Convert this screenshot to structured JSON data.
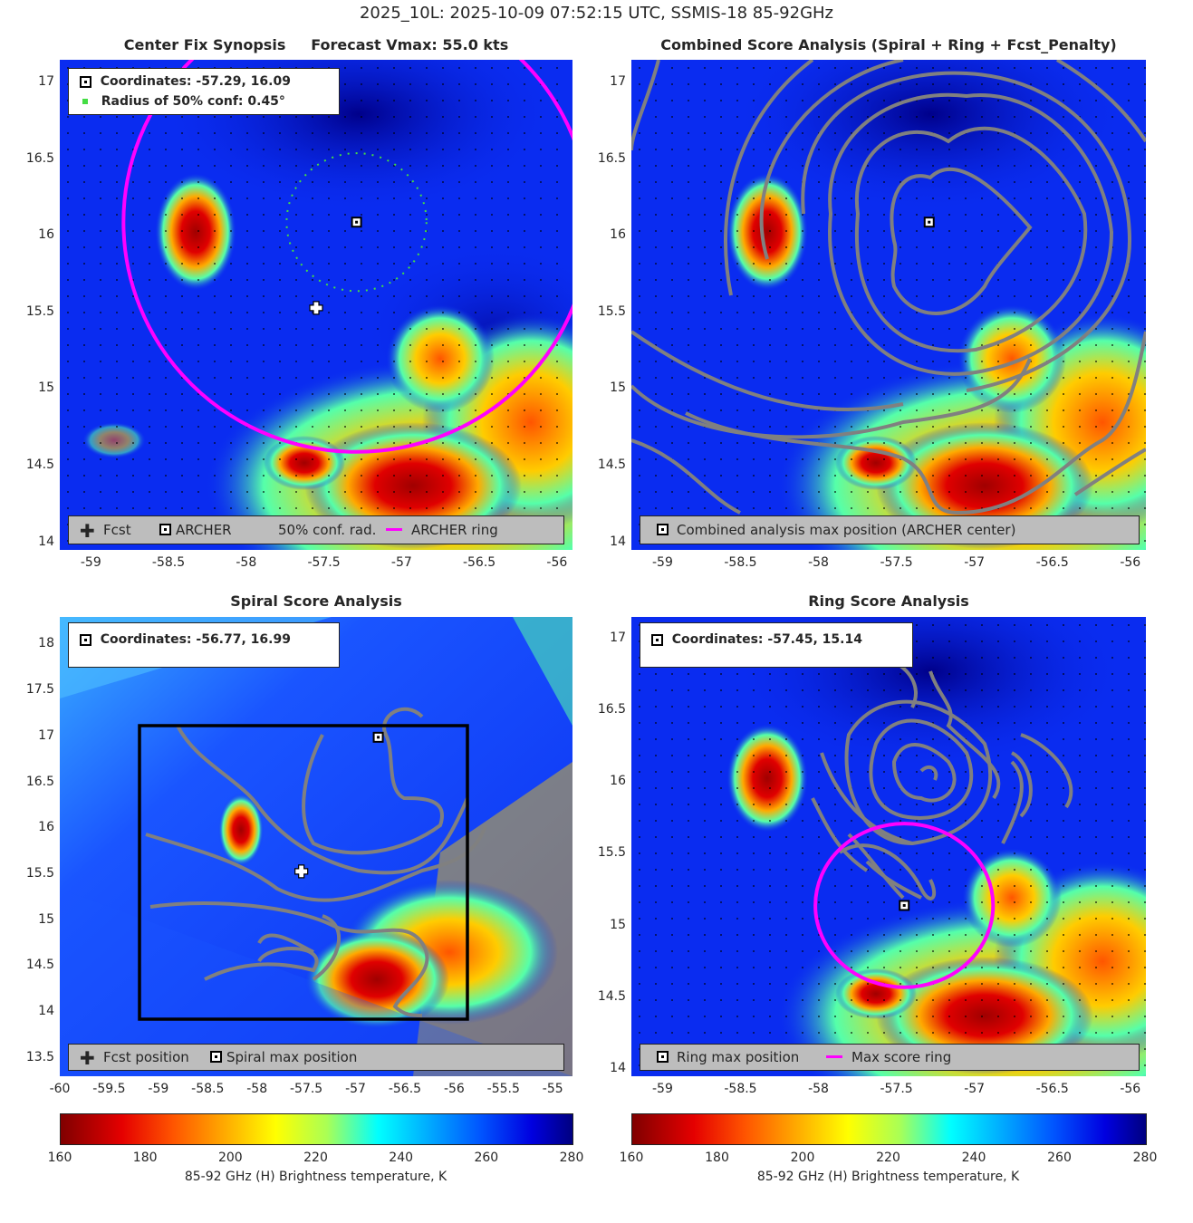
{
  "suptitle": "2025_10L: 2025-10-09 07:52:15 UTC, SSMIS-18 85-92GHz",
  "panels": {
    "p1": {
      "title": "Center Fix Synopsis     Forecast Vmax: 55.0 kts",
      "info": [
        "Coordinates: -57.29, 16.09",
        "Radius of 50% conf: 0.45°"
      ],
      "legend": [
        "Fcst",
        "ARCHER",
        "50% conf. rad.",
        "ARCHER ring"
      ],
      "xticks": [
        "-59",
        "-58.5",
        "-58",
        "-57.5",
        "-57",
        "-56.5",
        "-56"
      ],
      "yticks": [
        "17",
        "16.5",
        "16",
        "15.5",
        "15",
        "14.5",
        "14"
      ]
    },
    "p2": {
      "title": "Combined Score Analysis (Spiral + Ring + Fcst_Penalty)",
      "legend": [
        "Combined analysis max position (ARCHER center)"
      ],
      "xticks": [
        "-59",
        "-58.5",
        "-58",
        "-57.5",
        "-57",
        "-56.5",
        "-56"
      ],
      "yticks": [
        "17",
        "16.5",
        "16",
        "15.5",
        "15",
        "14.5",
        "14"
      ]
    },
    "p3": {
      "title": "Spiral Score Analysis",
      "info": [
        "Coordinates: -56.77, 16.99"
      ],
      "legend": [
        "Fcst position",
        "Spiral max position"
      ],
      "xticks": [
        "-60",
        "-59.5",
        "-59",
        "-58.5",
        "-58",
        "-57.5",
        "-57",
        "-56.5",
        "-56",
        "-55.5",
        "-55"
      ],
      "yticks": [
        "18",
        "17.5",
        "17",
        "16.5",
        "16",
        "15.5",
        "15",
        "14.5",
        "14",
        "13.5"
      ]
    },
    "p4": {
      "title": "Ring Score Analysis",
      "info": [
        "Coordinates: -57.45, 15.14"
      ],
      "legend": [
        "Ring max position",
        "Max score ring"
      ],
      "xticks": [
        "-59",
        "-58.5",
        "-58",
        "-57.5",
        "-57",
        "-56.5",
        "-56"
      ],
      "yticks": [
        "17",
        "16.5",
        "16",
        "15.5",
        "15",
        "14.5",
        "14"
      ]
    }
  },
  "colorbars": [
    {
      "ticks": [
        "160",
        "180",
        "200",
        "220",
        "240",
        "260",
        "280"
      ],
      "label": "85-92 GHz (H) Brightness temperature, K"
    },
    {
      "ticks": [
        "160",
        "180",
        "200",
        "220",
        "240",
        "260",
        "280"
      ],
      "label": "85-92 GHz (H) Brightness temperature, K"
    }
  ],
  "colors": {
    "archer_ring": "#ff00ff",
    "contour": "#808080",
    "conf_radius": "#44dd44"
  },
  "chart_data": [
    {
      "type": "heatmap",
      "title": "Center Fix Synopsis",
      "subtitle": "Forecast Vmax: 55.0 kts",
      "xlim": [
        -59.2,
        -55.9
      ],
      "ylim": [
        13.95,
        17.15
      ],
      "colorbar_range": [
        160,
        280
      ],
      "archer_center": [
        -57.29,
        16.09
      ],
      "fcst_position": [
        -57.55,
        15.53
      ],
      "conf_radius_deg": 0.45,
      "archer_ring": {
        "center": [
          -57.29,
          16.09
        ],
        "radius_deg": 1.5
      }
    },
    {
      "type": "heatmap",
      "title": "Combined Score Analysis (Spiral + Ring + Fcst_Penalty)",
      "xlim": [
        -59.2,
        -55.9
      ],
      "ylim": [
        13.95,
        17.15
      ],
      "max_position": [
        -57.29,
        16.09
      ]
    },
    {
      "type": "heatmap",
      "title": "Spiral Score Analysis",
      "xlim": [
        -60,
        -54.8
      ],
      "ylim": [
        13.3,
        18.3
      ],
      "spiral_max": [
        -56.77,
        16.99
      ],
      "fcst_position": [
        -57.55,
        15.53
      ]
    },
    {
      "type": "heatmap",
      "title": "Ring Score Analysis",
      "xlim": [
        -59.2,
        -55.9
      ],
      "ylim": [
        13.95,
        17.15
      ],
      "ring_max": [
        -57.45,
        15.14
      ],
      "max_score_ring": {
        "center": [
          -57.45,
          15.14
        ],
        "radius_deg": 0.57
      }
    }
  ]
}
